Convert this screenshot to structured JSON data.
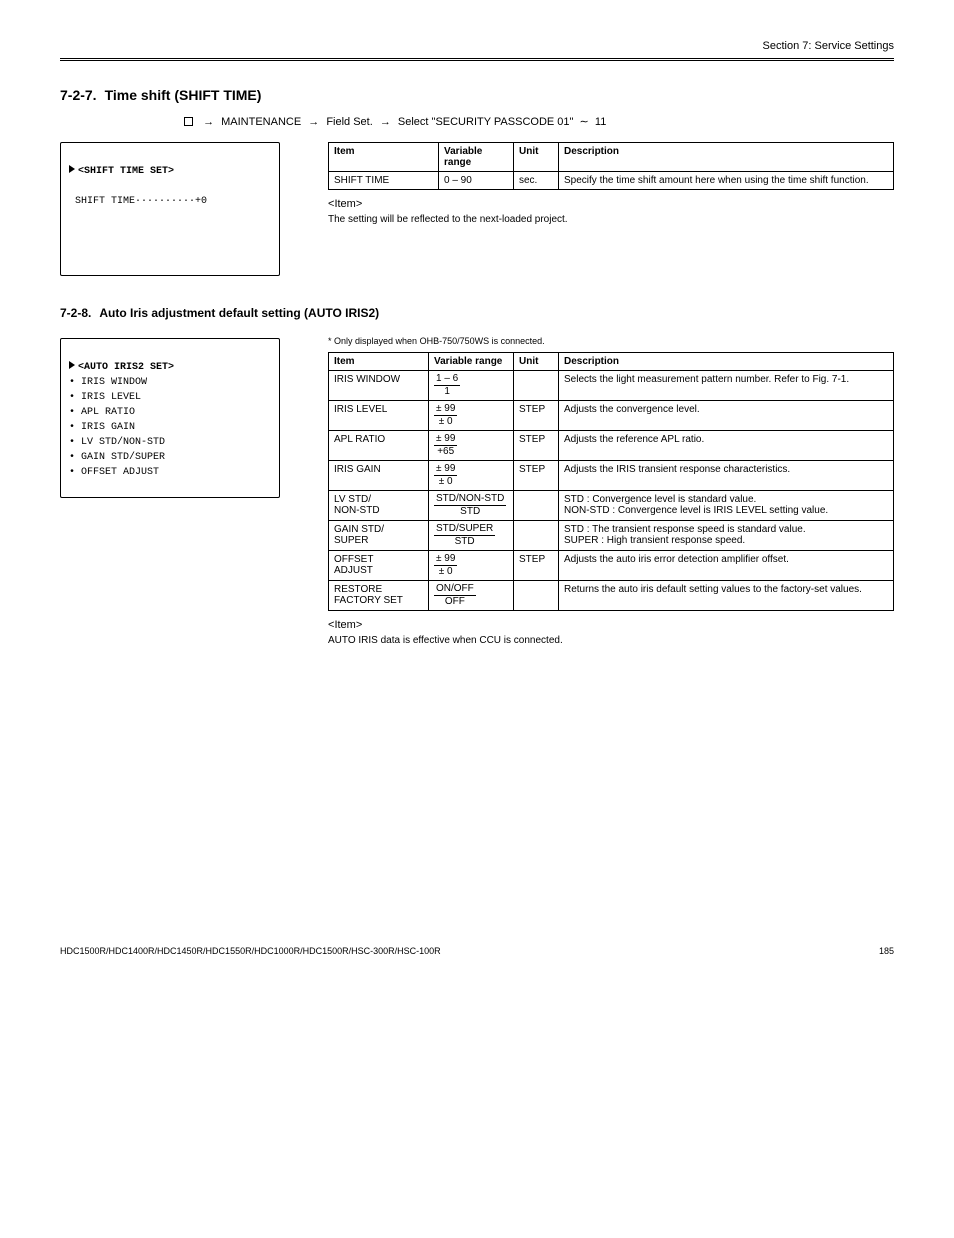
{
  "page": {
    "header_text": "Section 7: Service Settings",
    "footer_page": "185"
  },
  "breadcrumb": {
    "level1": "MAINTENANCE",
    "level2": "Field Set.",
    "level3": "Select \"SECURITY PASSCODE 01\"",
    "level4": "11"
  },
  "sec1": {
    "number": "7-2-7.",
    "title": "Time shift (SHIFT TIME)",
    "display_title": "SHIFT TIME SET",
    "display_line": "SHIFT TIME",
    "display_value": "+0",
    "table": {
      "headers": {
        "item": "Item",
        "variable": "Variable\nrange",
        "unit": "Unit",
        "description": "Description"
      },
      "row": {
        "item": "SHIFT TIME",
        "variable": "0 – 90",
        "unit": "sec.",
        "description": "Specify the time shift amount here when using the time shift function."
      }
    },
    "note_label": "Item",
    "note_text": "The setting will be reflected to the next-loaded project."
  },
  "sec2": {
    "number": "7-2-8.",
    "title": "Auto Iris adjustment default setting (AUTO IRIS2)",
    "star_note": "Only displayed when OHB-750/750WS is connected.",
    "display_title": "AUTO IRIS2 SET",
    "menu_items": [
      "IRIS WINDOW",
      "IRIS LEVEL",
      "APL RATIO",
      "IRIS GAIN",
      "LV STD/NON-STD",
      "GAIN STD/SUPER",
      "OFFSET ADJUST"
    ],
    "table": {
      "headers": {
        "item": "Item",
        "variable": "Variable\nrange",
        "unit": "Unit",
        "description": "Description"
      },
      "rows": [
        {
          "item": "IRIS WINDOW",
          "var_top": "1 – 6",
          "var_bot": "1",
          "unit": "",
          "desc": "Selects the light measurement pattern number. Refer to Fig. 7-1."
        },
        {
          "item": "IRIS LEVEL",
          "var_top": "± 99",
          "var_bot": "± 0",
          "unit": "STEP",
          "desc": "Adjusts the convergence level."
        },
        {
          "item": "APL RATIO",
          "var_top": "± 99",
          "var_bot": "+65",
          "unit": "STEP",
          "desc": "Adjusts the reference APL ratio."
        },
        {
          "item": "IRIS GAIN",
          "var_top": "± 99",
          "var_bot": "± 0",
          "unit": "STEP",
          "desc": "Adjusts the IRIS transient response characteristics."
        },
        {
          "item": "LV STD/\nNON-STD",
          "var_top": "STD/NON-STD",
          "var_bot": "STD",
          "unit": "",
          "desc": "STD : Convergence level is standard value.\nNON-STD : Convergence level is IRIS LEVEL setting value."
        },
        {
          "item": "GAIN STD/\nSUPER",
          "var_top": "STD/SUPER",
          "var_bot": "STD",
          "unit": "",
          "desc": "STD : The transient response speed is standard value.\nSUPER : High transient response speed."
        },
        {
          "item": "OFFSET\nADJUST",
          "var_top": "± 99",
          "var_bot": "± 0",
          "unit": "STEP",
          "desc": "Adjusts the auto iris error detection amplifier offset."
        },
        {
          "item": "RESTORE\nFACTORY SET",
          "var_top": "ON/OFF",
          "var_bot": "OFF",
          "unit": "",
          "desc": "Returns the auto iris default setting values to the factory-set values."
        }
      ]
    },
    "note_label": "Item",
    "note_text": "AUTO IRIS data is effective when CCU is connected."
  },
  "footer": {
    "model": "HDC1500R/HDC1400R/HDC1450R/HDC1550R/HDC1000R/HDC1500R/HSC-300R/HSC-100R"
  }
}
